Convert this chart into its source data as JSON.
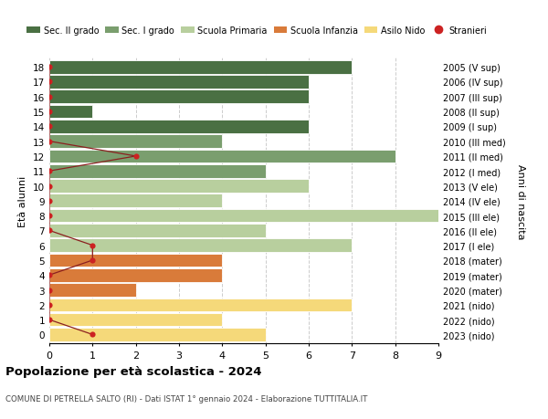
{
  "ages": [
    18,
    17,
    16,
    15,
    14,
    13,
    12,
    11,
    10,
    9,
    8,
    7,
    6,
    5,
    4,
    3,
    2,
    1,
    0
  ],
  "years": [
    "2005 (V sup)",
    "2006 (IV sup)",
    "2007 (III sup)",
    "2008 (II sup)",
    "2009 (I sup)",
    "2010 (III med)",
    "2011 (II med)",
    "2012 (I med)",
    "2013 (V ele)",
    "2014 (IV ele)",
    "2015 (III ele)",
    "2016 (II ele)",
    "2017 (I ele)",
    "2018 (mater)",
    "2019 (mater)",
    "2020 (mater)",
    "2021 (nido)",
    "2022 (nido)",
    "2023 (nido)"
  ],
  "bar_values": [
    7,
    6,
    6,
    1,
    6,
    4,
    8,
    5,
    6,
    4,
    9,
    5,
    7,
    4,
    4,
    2,
    7,
    4,
    5
  ],
  "bar_colors": [
    "#4a7043",
    "#4a7043",
    "#4a7043",
    "#4a7043",
    "#4a7043",
    "#7a9e6e",
    "#7a9e6e",
    "#7a9e6e",
    "#b8cf9e",
    "#b8cf9e",
    "#b8cf9e",
    "#b8cf9e",
    "#b8cf9e",
    "#d97b3a",
    "#d97b3a",
    "#d97b3a",
    "#f5d97a",
    "#f5d97a",
    "#f5d97a"
  ],
  "stranieri_values": [
    0,
    0,
    0,
    0,
    0,
    0,
    2,
    0,
    0,
    0,
    0,
    0,
    1,
    1,
    0,
    0,
    0,
    0,
    1
  ],
  "title": "Popolazione per età scolastica - 2024",
  "subtitle": "COMUNE DI PETRELLA SALTO (RI) - Dati ISTAT 1° gennaio 2024 - Elaborazione TUTTITALIA.IT",
  "ylabel": "Età alunni",
  "right_label": "Anni di nascita",
  "xlim": [
    0,
    9
  ],
  "xticks": [
    0,
    1,
    2,
    3,
    4,
    5,
    6,
    7,
    8,
    9
  ],
  "legend_labels": [
    "Sec. II grado",
    "Sec. I grado",
    "Scuola Primaria",
    "Scuola Infanzia",
    "Asilo Nido",
    "Stranieri"
  ],
  "legend_colors": [
    "#4a7043",
    "#7a9e6e",
    "#b8cf9e",
    "#d97b3a",
    "#f5d97a",
    "#cc2222"
  ],
  "stranieri_color": "#cc2222",
  "stranieri_line_color": "#8b2020",
  "background_color": "#ffffff",
  "grid_color": "#cccccc"
}
